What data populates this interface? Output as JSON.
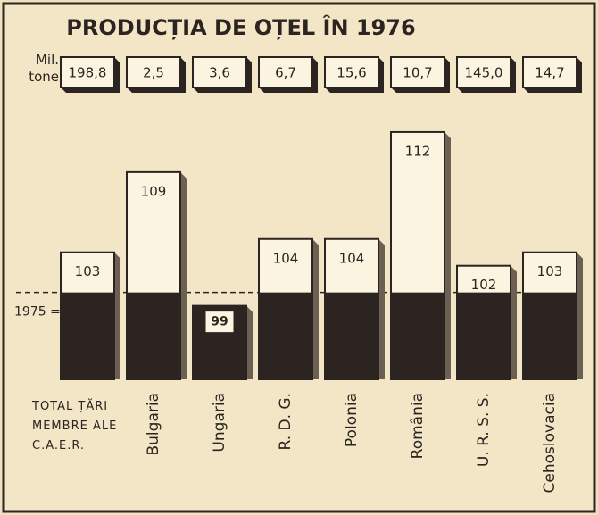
{
  "chart_data": {
    "type": "bar",
    "title": "PRODUCȚIA DE OȚEL ÎN 1976",
    "production_unit": "Mil. tone",
    "categories": [
      "TOTAL ȚĂRI MEMBRE ALE C.A.E.R.",
      "Bulgaria",
      "Ungaria",
      "R. D. G.",
      "Polonia",
      "România",
      "U. R. S. S.",
      "Cehoslovacia"
    ],
    "production": {
      "values": [
        198.8,
        2.5,
        3.6,
        6.7,
        15.6,
        10.7,
        145.0,
        14.7
      ],
      "value_labels": [
        "198,8",
        "2,5",
        "3,6",
        "6,7",
        "15,6",
        "10,7",
        "145,0",
        "14,7"
      ]
    },
    "values": [
      103,
      109,
      99,
      104,
      104,
      112,
      102,
      103
    ],
    "baseline": 100,
    "baseline_label": "1975 = 100",
    "ylim": [
      93.5,
      114
    ],
    "color": "#2b2420"
  }
}
